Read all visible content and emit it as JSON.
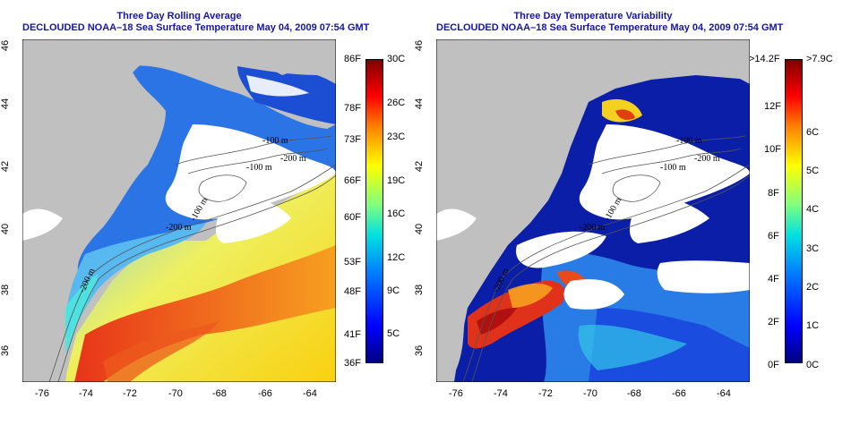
{
  "panels": [
    {
      "title_line1": "Three Day Rolling Average",
      "title_line2": "DECLOUDED NOAA–18 Sea Surface Temperature May 04, 2009 07:54 GMT",
      "x_ticks": [
        "-76",
        "-74",
        "-72",
        "-70",
        "-68",
        "-66",
        "-64"
      ],
      "y_ticks": [
        "46",
        "44",
        "42",
        "40",
        "38",
        "36"
      ],
      "contour_labels": [
        "-100 m",
        "-100 m",
        "-100 m",
        "-200 m",
        "-200 m",
        "-200 m"
      ],
      "colorbar_left": [
        "86F",
        "78F",
        "73F",
        "66F",
        "60F",
        "53F",
        "48F",
        "41F",
        "36F"
      ],
      "colorbar_right": [
        "30C",
        "26C",
        "23C",
        "19C",
        "16C",
        "12C",
        "9C",
        "5C"
      ]
    },
    {
      "title_line1": "Three Day Temperature Variability",
      "title_line2": "DECLOUDED NOAA–18 Sea Surface Temperature May 04, 2009 07:54 GMT",
      "x_ticks": [
        "-76",
        "-74",
        "-72",
        "-70",
        "-68",
        "-66",
        "-64"
      ],
      "y_ticks": [
        "46",
        "44",
        "42",
        "40",
        "38",
        "36"
      ],
      "contour_labels": [
        "-100 m",
        "-100 m",
        "-100 m",
        "-200 m",
        "-200 m",
        "-200 m"
      ],
      "colorbar_left": [
        ">14.2F",
        "12F",
        "10F",
        "8F",
        "6F",
        "4F",
        "2F",
        "0F"
      ],
      "colorbar_right": [
        ">7.9C",
        "6C",
        "5C",
        "4C",
        "3C",
        "2C",
        "1C",
        "0C"
      ]
    }
  ],
  "colors": {
    "land": "#c0c0c0",
    "cloud": "#ffffff",
    "title": "#1515a8"
  }
}
